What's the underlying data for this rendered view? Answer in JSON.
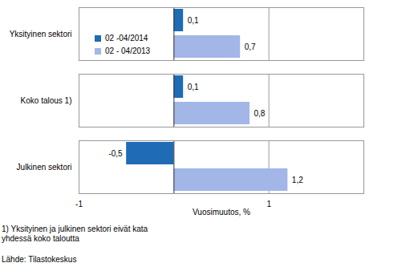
{
  "chart_data": {
    "type": "bar",
    "orientation": "horizontal",
    "categories": [
      "Yksityinen sektori",
      "Koko talous 1)",
      "Julkinen sektori"
    ],
    "series": [
      {
        "name": "02 -04/2014",
        "color": "#1f6bb5",
        "values": [
          0.1,
          0.1,
          -0.5
        ],
        "value_labels": [
          "0,1",
          "0,1",
          "-0,5"
        ]
      },
      {
        "name": "02 - 04/2013",
        "color": "#a3b6e8",
        "values": [
          0.7,
          0.8,
          1.2
        ],
        "value_labels": [
          "0,7",
          "0,8",
          "1,2"
        ]
      }
    ],
    "xlabel": "Vuosimuutos, %",
    "xlim": [
      -1,
      2
    ],
    "xticks": [
      -1,
      1
    ],
    "grid": true,
    "legend": "top-left",
    "data_labels": true,
    "annotations": [
      "1) Yksityinen ja julkinen sektori eivät kata yhdessä koko taloutta",
      "Lähde: Tilastokeskus"
    ]
  }
}
